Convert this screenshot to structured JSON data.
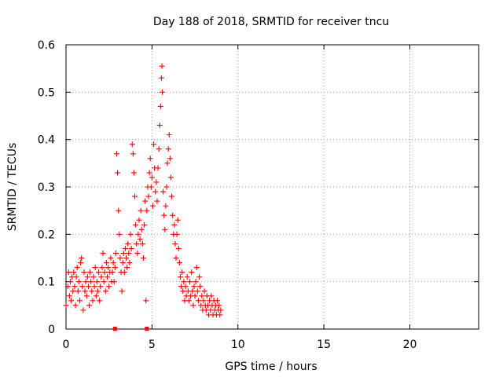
{
  "chart_data": {
    "type": "scatter",
    "title": "Day 188 of 2018, SRMTID for receiver tncu",
    "xlabel": "GPS time / hours",
    "ylabel": "SRMTID / TECUs",
    "xlim": [
      0,
      24
    ],
    "ylim": [
      0,
      0.6
    ],
    "xticks": [
      0,
      5,
      10,
      15,
      20
    ],
    "yticks": [
      0,
      0.1,
      0.2,
      0.3,
      0.4,
      0.5,
      0.6
    ],
    "ytick_labels": [
      "0",
      "0.1",
      "0.2",
      "0.3",
      "0.4",
      "0.5",
      "0.6"
    ],
    "grid": true,
    "series": [
      {
        "name": "SRMTID",
        "color": "#ff0000",
        "marker": "plus",
        "points": [
          [
            0.0,
            0.05
          ],
          [
            0.1,
            0.09
          ],
          [
            0.15,
            0.12
          ],
          [
            0.2,
            0.07
          ],
          [
            0.25,
            0.1
          ],
          [
            0.3,
            0.06
          ],
          [
            0.35,
            0.11
          ],
          [
            0.4,
            0.08
          ],
          [
            0.45,
            0.12
          ],
          [
            0.5,
            0.09
          ],
          [
            0.55,
            0.05
          ],
          [
            0.6,
            0.11
          ],
          [
            0.65,
            0.13
          ],
          [
            0.7,
            0.08
          ],
          [
            0.75,
            0.1
          ],
          [
            0.8,
            0.06
          ],
          [
            0.85,
            0.14
          ],
          [
            0.9,
            0.15
          ],
          [
            0.95,
            0.09
          ],
          [
            1.0,
            0.04
          ],
          [
            1.05,
            0.12
          ],
          [
            1.1,
            0.08
          ],
          [
            1.15,
            0.1
          ],
          [
            1.2,
            0.07
          ],
          [
            1.25,
            0.11
          ],
          [
            1.3,
            0.09
          ],
          [
            1.35,
            0.05
          ],
          [
            1.4,
            0.12
          ],
          [
            1.45,
            0.1
          ],
          [
            1.5,
            0.08
          ],
          [
            1.55,
            0.06
          ],
          [
            1.6,
            0.11
          ],
          [
            1.65,
            0.09
          ],
          [
            1.7,
            0.13
          ],
          [
            1.75,
            0.07
          ],
          [
            1.8,
            0.1
          ],
          [
            1.85,
            0.08
          ],
          [
            1.9,
            0.12
          ],
          [
            1.95,
            0.06
          ],
          [
            2.0,
            0.09
          ],
          [
            2.05,
            0.11
          ],
          [
            2.1,
            0.13
          ],
          [
            2.15,
            0.16
          ],
          [
            2.2,
            0.1
          ],
          [
            2.25,
            0.12
          ],
          [
            2.3,
            0.08
          ],
          [
            2.35,
            0.14
          ],
          [
            2.4,
            0.11
          ],
          [
            2.45,
            0.13
          ],
          [
            2.5,
            0.09
          ],
          [
            2.55,
            0.12
          ],
          [
            2.6,
            0.15
          ],
          [
            2.65,
            0.1
          ],
          [
            2.7,
            0.12
          ],
          [
            2.75,
            0.14
          ],
          [
            2.8,
            0.1
          ],
          [
            2.85,
            0.13
          ],
          [
            2.9,
            0.16
          ],
          [
            2.95,
            0.37
          ],
          [
            3.0,
            0.33
          ],
          [
            3.05,
            0.25
          ],
          [
            3.1,
            0.2
          ],
          [
            3.15,
            0.15
          ],
          [
            3.2,
            0.12
          ],
          [
            3.25,
            0.08
          ],
          [
            3.3,
            0.14
          ],
          [
            3.35,
            0.16
          ],
          [
            3.4,
            0.12
          ],
          [
            3.45,
            0.17
          ],
          [
            3.5,
            0.15
          ],
          [
            3.55,
            0.13
          ],
          [
            3.6,
            0.18
          ],
          [
            3.65,
            0.16
          ],
          [
            3.7,
            0.14
          ],
          [
            3.75,
            0.2
          ],
          [
            3.8,
            0.17
          ],
          [
            3.85,
            0.39
          ],
          [
            3.9,
            0.37
          ],
          [
            3.95,
            0.33
          ],
          [
            4.0,
            0.28
          ],
          [
            4.05,
            0.22
          ],
          [
            4.1,
            0.18
          ],
          [
            4.15,
            0.16
          ],
          [
            4.2,
            0.2
          ],
          [
            4.25,
            0.23
          ],
          [
            4.3,
            0.19
          ],
          [
            4.35,
            0.25
          ],
          [
            4.4,
            0.21
          ],
          [
            4.45,
            0.18
          ],
          [
            4.5,
            0.15
          ],
          [
            4.55,
            0.22
          ],
          [
            4.6,
            0.27
          ],
          [
            4.65,
            0.06
          ],
          [
            4.7,
            0.25
          ],
          [
            4.75,
            0.3
          ],
          [
            4.8,
            0.28
          ],
          [
            4.85,
            0.33
          ],
          [
            4.9,
            0.36
          ],
          [
            4.95,
            0.3
          ],
          [
            5.0,
            0.32
          ],
          [
            5.05,
            0.26
          ],
          [
            5.1,
            0.39
          ],
          [
            5.15,
            0.34
          ],
          [
            5.2,
            0.29
          ],
          [
            5.25,
            0.31
          ],
          [
            5.3,
            0.27
          ],
          [
            5.35,
            0.34
          ],
          [
            5.4,
            0.38
          ],
          [
            5.45,
            0.43
          ],
          [
            5.5,
            0.47
          ],
          [
            5.55,
            0.53
          ],
          [
            5.58,
            0.555
          ],
          [
            5.6,
            0.5
          ],
          [
            5.65,
            0.29
          ],
          [
            5.7,
            0.24
          ],
          [
            5.75,
            0.21
          ],
          [
            5.8,
            0.26
          ],
          [
            5.85,
            0.3
          ],
          [
            5.9,
            0.35
          ],
          [
            5.95,
            0.38
          ],
          [
            6.0,
            0.41
          ],
          [
            6.05,
            0.36
          ],
          [
            6.1,
            0.32
          ],
          [
            6.15,
            0.28
          ],
          [
            6.2,
            0.24
          ],
          [
            6.25,
            0.2
          ],
          [
            6.3,
            0.22
          ],
          [
            6.35,
            0.18
          ],
          [
            6.4,
            0.15
          ],
          [
            6.45,
            0.2
          ],
          [
            6.5,
            0.23
          ],
          [
            6.55,
            0.17
          ],
          [
            6.6,
            0.14
          ],
          [
            6.65,
            0.11
          ],
          [
            6.7,
            0.09
          ],
          [
            6.75,
            0.12
          ],
          [
            6.8,
            0.08
          ],
          [
            6.85,
            0.1
          ],
          [
            6.9,
            0.06
          ],
          [
            6.95,
            0.09
          ],
          [
            7.0,
            0.07
          ],
          [
            7.05,
            0.11
          ],
          [
            7.1,
            0.08
          ],
          [
            7.15,
            0.06
          ],
          [
            7.2,
            0.1
          ],
          [
            7.25,
            0.07
          ],
          [
            7.3,
            0.12
          ],
          [
            7.35,
            0.08
          ],
          [
            7.4,
            0.05
          ],
          [
            7.45,
            0.09
          ],
          [
            7.5,
            0.07
          ],
          [
            7.55,
            0.1
          ],
          [
            7.6,
            0.13
          ],
          [
            7.65,
            0.08
          ],
          [
            7.7,
            0.06
          ],
          [
            7.75,
            0.11
          ],
          [
            7.8,
            0.09
          ],
          [
            7.85,
            0.05
          ],
          [
            7.9,
            0.07
          ],
          [
            7.95,
            0.04
          ],
          [
            8.0,
            0.06
          ],
          [
            8.05,
            0.08
          ],
          [
            8.1,
            0.05
          ],
          [
            8.15,
            0.04
          ],
          [
            8.2,
            0.07
          ],
          [
            8.25,
            0.05
          ],
          [
            8.3,
            0.03
          ],
          [
            8.35,
            0.06
          ],
          [
            8.4,
            0.04
          ],
          [
            8.45,
            0.07
          ],
          [
            8.5,
            0.05
          ],
          [
            8.55,
            0.03
          ],
          [
            8.6,
            0.06
          ],
          [
            8.65,
            0.04
          ],
          [
            8.7,
            0.05
          ],
          [
            8.75,
            0.03
          ],
          [
            8.8,
            0.06
          ],
          [
            8.85,
            0.04
          ],
          [
            8.9,
            0.05
          ],
          [
            8.95,
            0.03
          ],
          [
            9.0,
            0.04
          ]
        ]
      }
    ],
    "gap_markers": [
      2.85,
      4.7
    ]
  }
}
